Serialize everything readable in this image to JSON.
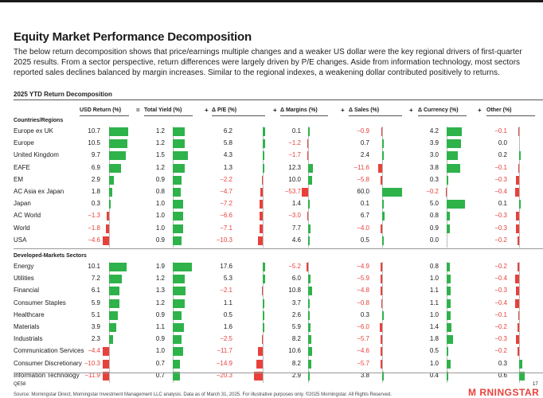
{
  "page": {
    "title": "Equity Market Performance Decomposition",
    "description": "The below return decomposition shows that price/earnings multiple changes and a weaker US dollar were the key regional drivers of first-quarter 2025 results. From a sector perspective, return differences were largely driven by P/E changes. Aside from information technology, most sectors reported sales declines balanced by margin increases. Similar to the regional indexes, a weakening dollar contributed positively to returns.",
    "footer_code": "QE58",
    "page_number": "17",
    "source": "Source: Morningstar Direct, Morningstar Investment Management LLC analysis. Data as of March 31, 2025. For illustrative purposes only. ©2025 Morningstar. All Rights Reserved.",
    "logo": "M RNINGSTAR"
  },
  "colors": {
    "positive": "#2eb24a",
    "negative": "#e8413c"
  },
  "chart_data": {
    "type": "table",
    "title": "2025 YTD Return Decomposition",
    "columns": [
      {
        "label": "USD Return (%)",
        "op": ""
      },
      {
        "label": "Total Yield (%)",
        "op": "="
      },
      {
        "label": "Δ P/E (%)",
        "op": "+"
      },
      {
        "label": "Δ Margins (%)",
        "op": "+"
      },
      {
        "label": "Δ Sales (%)",
        "op": "+"
      },
      {
        "label": "Δ Currency (%)",
        "op": "+"
      },
      {
        "label": "Other (%)",
        "op": "+"
      }
    ],
    "sections": [
      {
        "name": "Countries/Regions",
        "rows": [
          {
            "label": "Europe ex UK",
            "values": [
              10.7,
              1.2,
              6.2,
              0.1,
              -0.9,
              4.2,
              -0.1
            ]
          },
          {
            "label": "Europe",
            "values": [
              10.5,
              1.2,
              5.8,
              -1.2,
              0.7,
              3.9,
              0.0
            ]
          },
          {
            "label": "United Kingdom",
            "values": [
              9.7,
              1.5,
              4.3,
              -1.7,
              2.4,
              3.0,
              0.2
            ]
          },
          {
            "label": "EAFE",
            "values": [
              6.9,
              1.2,
              1.3,
              12.3,
              -11.6,
              3.8,
              -0.1
            ]
          },
          {
            "label": "EM",
            "values": [
              2.9,
              0.9,
              -2.2,
              10.0,
              -5.8,
              0.3,
              -0.3
            ]
          },
          {
            "label": "AC Asia ex Japan",
            "values": [
              1.8,
              0.8,
              -4.7,
              -53.7,
              60.0,
              -0.2,
              -0.4
            ]
          },
          {
            "label": "Japan",
            "values": [
              0.3,
              1.0,
              -7.2,
              1.4,
              0.1,
              5.0,
              0.1
            ]
          },
          {
            "label": "AC World",
            "values": [
              -1.3,
              1.0,
              -6.6,
              -3.0,
              6.7,
              0.8,
              -0.3
            ]
          },
          {
            "label": "World",
            "values": [
              -1.8,
              1.0,
              -7.1,
              7.7,
              -4.0,
              0.9,
              -0.3
            ]
          },
          {
            "label": "USA",
            "values": [
              -4.6,
              0.9,
              -10.3,
              4.6,
              0.5,
              0.0,
              -0.2
            ]
          }
        ]
      },
      {
        "name": "Developed-Markets Sectors",
        "rows": [
          {
            "label": "Energy",
            "values": [
              10.1,
              1.9,
              17.6,
              -5.2,
              -4.9,
              0.8,
              -0.2
            ]
          },
          {
            "label": "Utilities",
            "values": [
              7.2,
              1.2,
              5.3,
              6.0,
              -5.9,
              1.0,
              -0.4
            ]
          },
          {
            "label": "Financial",
            "values": [
              6.1,
              1.3,
              -2.1,
              10.8,
              -4.8,
              1.1,
              -0.3
            ]
          },
          {
            "label": "Consumer Staples",
            "values": [
              5.9,
              1.2,
              1.1,
              3.7,
              -0.8,
              1.1,
              -0.4
            ]
          },
          {
            "label": "Healthcare",
            "values": [
              5.1,
              0.9,
              0.5,
              2.6,
              0.3,
              1.0,
              -0.1
            ]
          },
          {
            "label": "Materials",
            "values": [
              3.9,
              1.1,
              1.6,
              5.9,
              -6.0,
              1.4,
              -0.2
            ]
          },
          {
            "label": "Industrials",
            "values": [
              2.3,
              0.9,
              -2.5,
              8.2,
              -5.7,
              1.8,
              -0.3
            ]
          },
          {
            "label": "Communication Services",
            "values": [
              -4.4,
              1.0,
              -11.7,
              10.6,
              -4.6,
              0.5,
              -0.2
            ]
          },
          {
            "label": "Consumer Discretionary",
            "values": [
              -10.3,
              0.7,
              -14.9,
              8.2,
              -5.7,
              1.0,
              0.3
            ]
          },
          {
            "label": "Information Technology",
            "values": [
              -11.9,
              0.7,
              -20.3,
              2.9,
              3.8,
              0.4,
              0.6
            ]
          }
        ]
      }
    ]
  }
}
